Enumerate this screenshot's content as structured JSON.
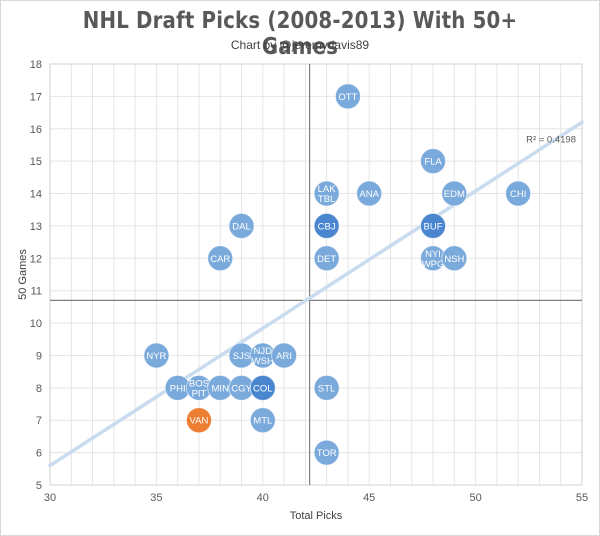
{
  "chart_data": {
    "type": "scatter",
    "title": "NHL Draft Picks (2008-2013) With 50+ Games",
    "subtitle": "Chart by @jeremydavis89",
    "xlabel": "Total Picks",
    "ylabel": "50 Games",
    "xlim": [
      30,
      55
    ],
    "ylim": [
      5,
      18
    ],
    "xticks": [
      30,
      35,
      40,
      45,
      50,
      55
    ],
    "yticks": [
      5,
      6,
      7,
      8,
      9,
      10,
      11,
      12,
      13,
      14,
      15,
      16,
      17,
      18
    ],
    "grid": true,
    "colors": {
      "point": "#7aa9db",
      "point_dark": "#4a86cf",
      "highlight": "#ed7d31",
      "trendline": "#c9dbee",
      "avgline": "#7f7f7f",
      "grid": "#e5e5e5"
    },
    "mean_lines": {
      "x": 42.2,
      "y": 10.7
    },
    "trendline": {
      "x": [
        30,
        55
      ],
      "y": [
        5.6,
        16.2
      ],
      "label": "R² = 0.4198"
    },
    "points": [
      {
        "label": "OTT",
        "x": 44,
        "y": 17
      },
      {
        "label": "FLA",
        "x": 48,
        "y": 15
      },
      {
        "label": "LAK\nTBL",
        "x": 43,
        "y": 14
      },
      {
        "label": "ANA",
        "x": 45,
        "y": 14
      },
      {
        "label": "EDM",
        "x": 49,
        "y": 14
      },
      {
        "label": "CHI",
        "x": 52,
        "y": 14
      },
      {
        "label": "DAL",
        "x": 39,
        "y": 13
      },
      {
        "label": "CBJ",
        "x": 43,
        "y": 13,
        "dark": true
      },
      {
        "label": "BUF",
        "x": 48,
        "y": 13,
        "dark": true
      },
      {
        "label": "CAR",
        "x": 38,
        "y": 12
      },
      {
        "label": "DET",
        "x": 43,
        "y": 12
      },
      {
        "label": "NYI\nWPG",
        "x": 48,
        "y": 12
      },
      {
        "label": "NSH",
        "x": 49,
        "y": 12
      },
      {
        "label": "NYR",
        "x": 35,
        "y": 9
      },
      {
        "label": "SJS",
        "x": 39,
        "y": 9
      },
      {
        "label": "NJD\nWSH",
        "x": 40,
        "y": 9
      },
      {
        "label": "ARI",
        "x": 41,
        "y": 9
      },
      {
        "label": "PHI",
        "x": 36,
        "y": 8
      },
      {
        "label": "BOS\nPIT",
        "x": 37,
        "y": 8
      },
      {
        "label": "MIN",
        "x": 38,
        "y": 8
      },
      {
        "label": "CGY",
        "x": 39,
        "y": 8
      },
      {
        "label": "COL",
        "x": 40,
        "y": 8,
        "dark": true
      },
      {
        "label": "STL",
        "x": 43,
        "y": 8
      },
      {
        "label": "VAN",
        "x": 37,
        "y": 7,
        "highlight": true
      },
      {
        "label": "MTL",
        "x": 40,
        "y": 7
      },
      {
        "label": "TOR",
        "x": 43,
        "y": 6
      }
    ]
  }
}
